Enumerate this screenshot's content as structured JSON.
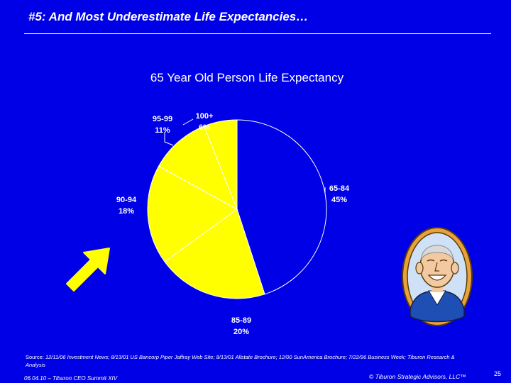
{
  "slide": {
    "title": "#5: And Most Underestimate Life Expectancies…"
  },
  "colors": {
    "background": "#0000E6",
    "slice_main": "#0000E6",
    "slice_other": "#FFFF00",
    "outline": "#FFFFFF"
  },
  "chart_data": {
    "type": "pie",
    "title": "65 Year Old Person Life Expectancy",
    "start": "12 o'clock",
    "direction": "clockwise",
    "slices": [
      {
        "label": "65-84",
        "value": 45,
        "value_label": "45%",
        "color": "#0000E6"
      },
      {
        "label": "85-89",
        "value": 20,
        "value_label": "20%",
        "color": "#FFFF00"
      },
      {
        "label": "90-94",
        "value": 18,
        "value_label": "18%",
        "color": "#FFFF00"
      },
      {
        "label": "95-99",
        "value": 11,
        "value_label": "11%",
        "color": "#FFFF00"
      },
      {
        "label": "100+",
        "value": 6,
        "value_label": "6%",
        "color": "#FFFF00"
      }
    ]
  },
  "source": {
    "label": "Source:",
    "text": "12/11/06 Investment News; 8/13/01 US Bancorp Piper Jaffray Web Site; 8/13/01 Allstate Brochure; 12/00 SunAmerica Brochure; 7/22/96 Business Week; Tiburon Research & Analysis"
  },
  "footer": {
    "left": "06.04.10 – Tiburon CEO Summit XIV",
    "right": "© Tiburon Strategic Advisors, LLC™",
    "page": "25"
  },
  "decor": {
    "arrow_icon": "arrow-up-right-icon",
    "portrait_icon": "smiling-elderly-man-portrait"
  }
}
